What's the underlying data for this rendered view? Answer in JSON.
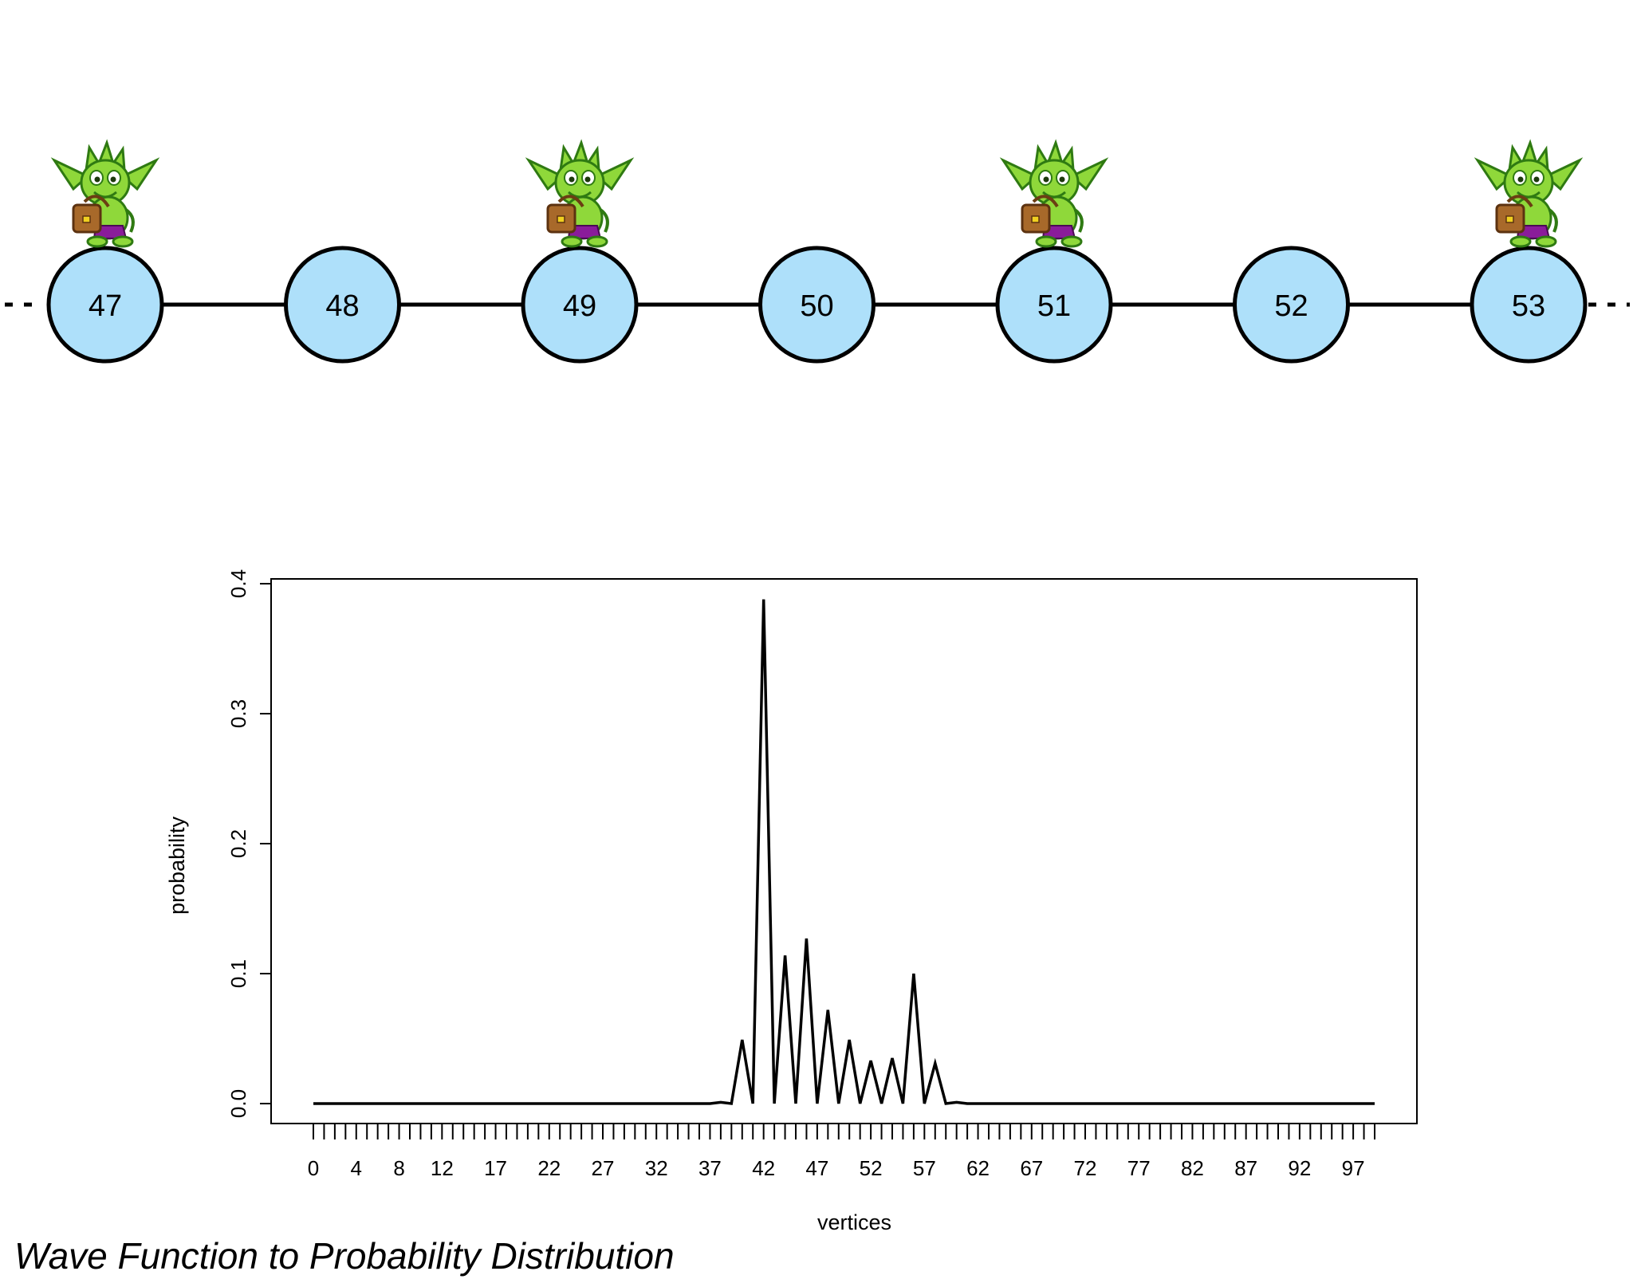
{
  "caption": "Wave Function to Probability Distribution",
  "graph": {
    "nodes": [
      "47",
      "48",
      "49",
      "50",
      "51",
      "52",
      "53"
    ],
    "walkers_on": [
      "47",
      "49",
      "51",
      "53"
    ],
    "node_fill": "#aee0fa",
    "walker_icon": "green-goblin-with-satchel-icon"
  },
  "chart_data": {
    "type": "line",
    "xlabel": "vertices",
    "ylabel": "probability",
    "xlim": [
      0,
      99
    ],
    "ylim": [
      0,
      0.4
    ],
    "yticks": [
      "0.0",
      "0.1",
      "0.2",
      "0.3",
      "0.4"
    ],
    "xtick_labels": [
      {
        "x": 0,
        "label": "0"
      },
      {
        "x": 4,
        "label": "4"
      },
      {
        "x": 8,
        "label": "8"
      },
      {
        "x": 12,
        "label": "12"
      },
      {
        "x": 17,
        "label": "17"
      },
      {
        "x": 22,
        "label": "22"
      },
      {
        "x": 27,
        "label": "27"
      },
      {
        "x": 32,
        "label": "32"
      },
      {
        "x": 37,
        "label": "37"
      },
      {
        "x": 42,
        "label": "42"
      },
      {
        "x": 47,
        "label": "47"
      },
      {
        "x": 52,
        "label": "52"
      },
      {
        "x": 57,
        "label": "57"
      },
      {
        "x": 62,
        "label": "62"
      },
      {
        "x": 67,
        "label": "67"
      },
      {
        "x": 72,
        "label": "72"
      },
      {
        "x": 77,
        "label": "77"
      },
      {
        "x": 82,
        "label": "82"
      },
      {
        "x": 87,
        "label": "87"
      },
      {
        "x": 92,
        "label": "92"
      },
      {
        "x": 97,
        "label": "97"
      }
    ],
    "series": [
      {
        "values": [
          0,
          0,
          0,
          0,
          0,
          0,
          0,
          0,
          0,
          0,
          0,
          0,
          0,
          0,
          0,
          0,
          0,
          0,
          0,
          0,
          0,
          0,
          0,
          0,
          0,
          0,
          0,
          0,
          0,
          0,
          0,
          0,
          0,
          0,
          0,
          0,
          0,
          0,
          0.001,
          0,
          0.049,
          0,
          0.388,
          0,
          0.114,
          0,
          0.127,
          0,
          0.072,
          0,
          0.049,
          0,
          0.033,
          0,
          0.035,
          0,
          0.1,
          0,
          0.031,
          0,
          0.001,
          0,
          0,
          0,
          0,
          0,
          0,
          0,
          0,
          0,
          0,
          0,
          0,
          0,
          0,
          0,
          0,
          0,
          0,
          0,
          0,
          0,
          0,
          0,
          0,
          0,
          0,
          0,
          0,
          0,
          0,
          0,
          0,
          0,
          0,
          0,
          0,
          0,
          0,
          0
        ]
      }
    ]
  }
}
